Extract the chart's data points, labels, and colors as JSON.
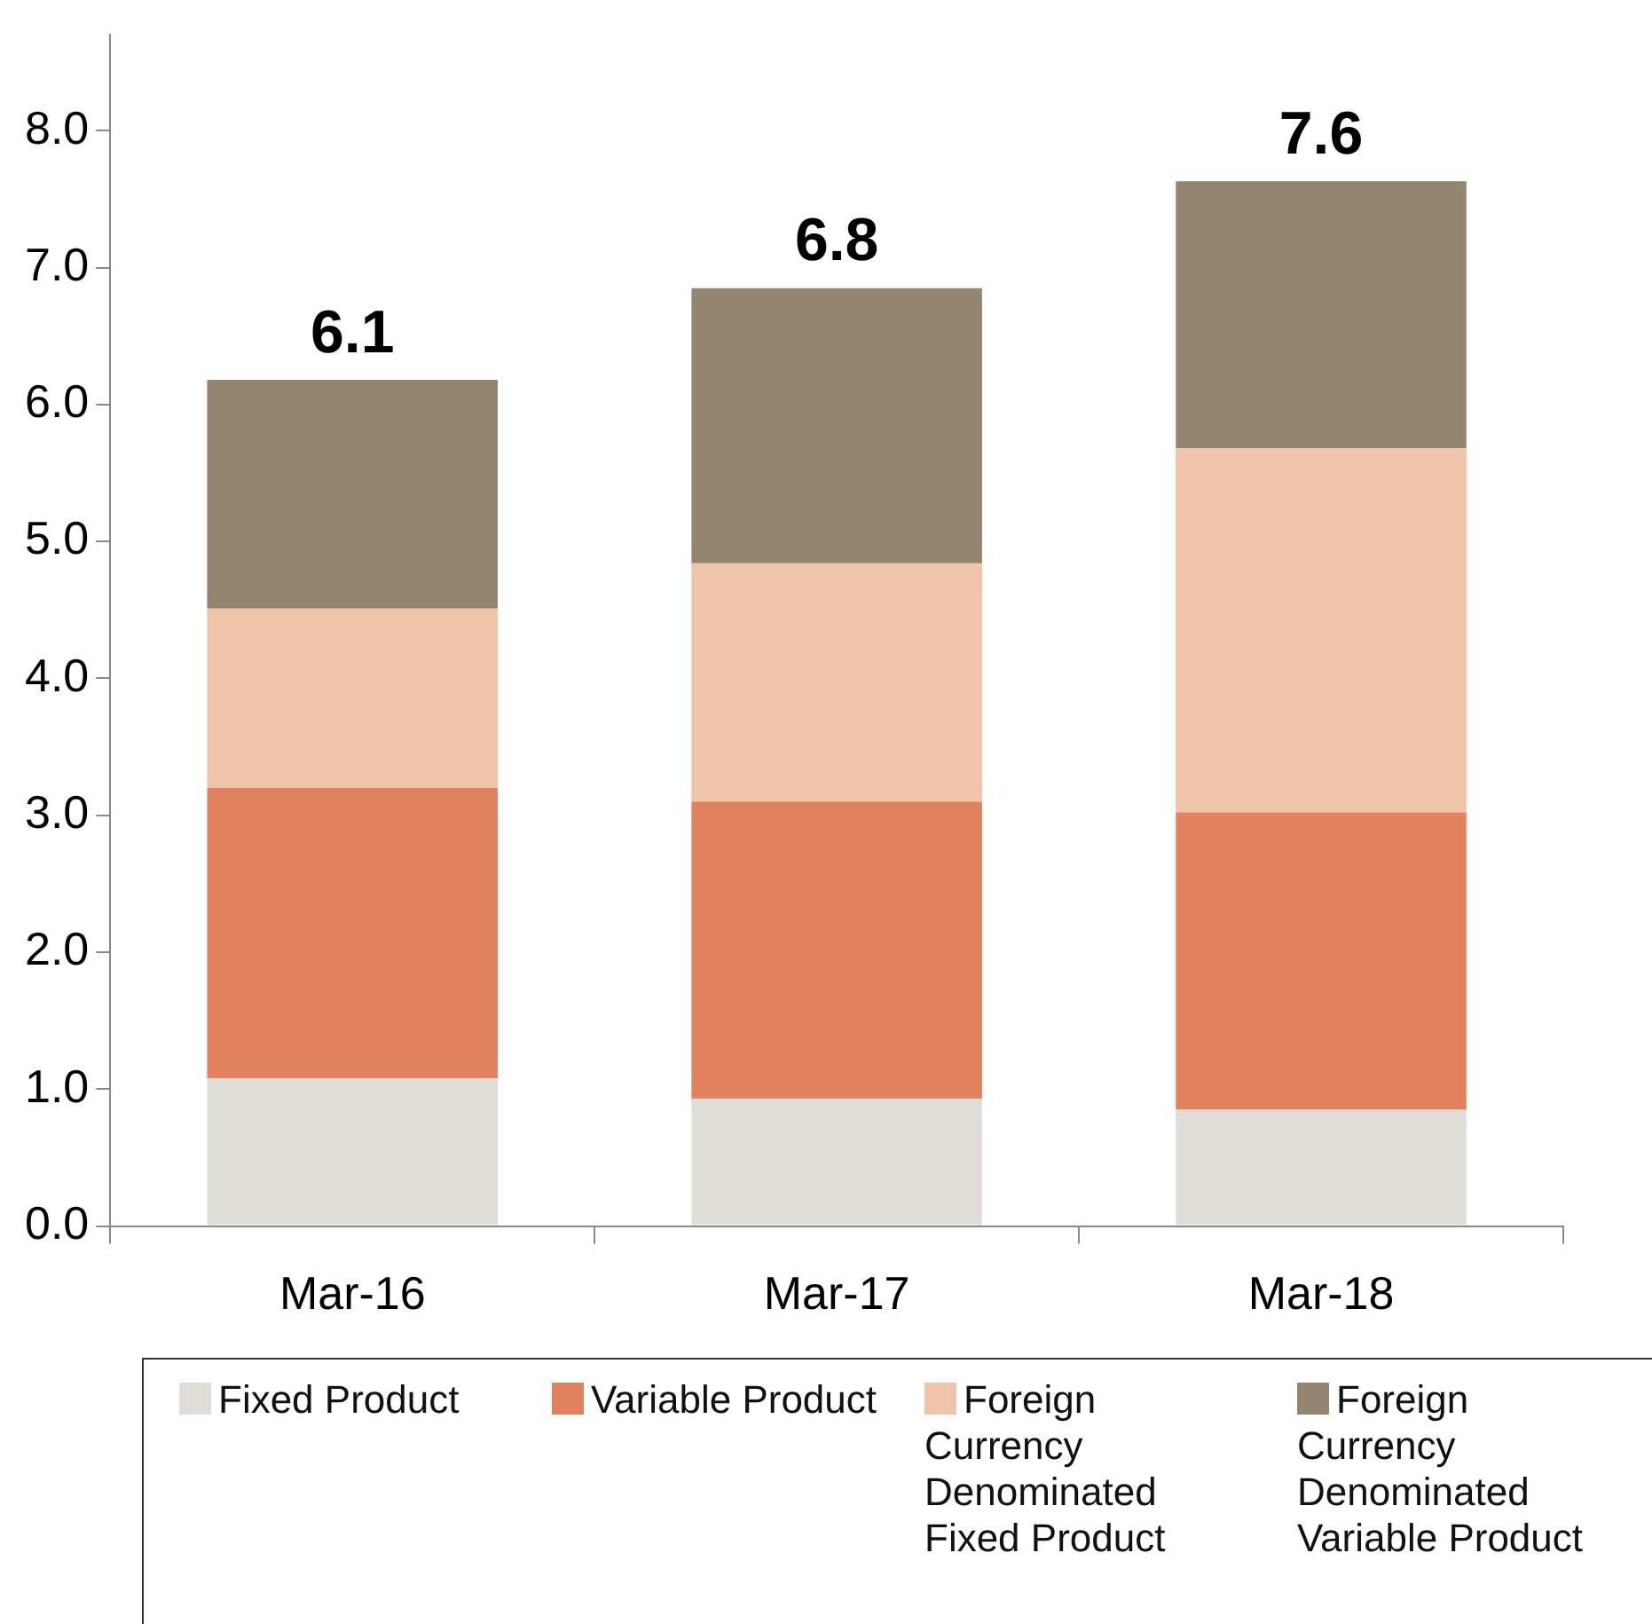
{
  "chart_data": {
    "type": "bar",
    "stacked": true,
    "categories": [
      "Mar-16",
      "Mar-17",
      "Mar-18"
    ],
    "series": [
      {
        "name": "Fixed Product",
        "color": "#e0ddd7",
        "values": [
          1.08,
          0.93,
          0.85
        ]
      },
      {
        "name": "Variable Product",
        "color": "#e0835e",
        "values": [
          2.12,
          2.17,
          2.17
        ]
      },
      {
        "name": "Foreign Currency Denominated Fixed Product",
        "color": "#f0c4aa",
        "values": [
          1.31,
          1.74,
          2.66
        ]
      },
      {
        "name": "Foreign Currency Denominated Variable Product",
        "color": "#938570",
        "values": [
          1.67,
          2.01,
          1.95
        ]
      }
    ],
    "totals": [
      "6.1",
      "6.8",
      "7.6"
    ],
    "ylim": [
      0,
      8.7
    ],
    "yticks": [
      {
        "value": 0,
        "label": "0.0"
      },
      {
        "value": 1,
        "label": "1.0"
      },
      {
        "value": 2,
        "label": "2.0"
      },
      {
        "value": 3,
        "label": "3.0"
      },
      {
        "value": 4,
        "label": "4.0"
      },
      {
        "value": 5,
        "label": "5.0"
      },
      {
        "value": 6,
        "label": "6.0"
      },
      {
        "value": 7,
        "label": "7.0"
      },
      {
        "value": 8,
        "label": "8.0"
      }
    ],
    "grid": false,
    "legend": "bottom"
  }
}
